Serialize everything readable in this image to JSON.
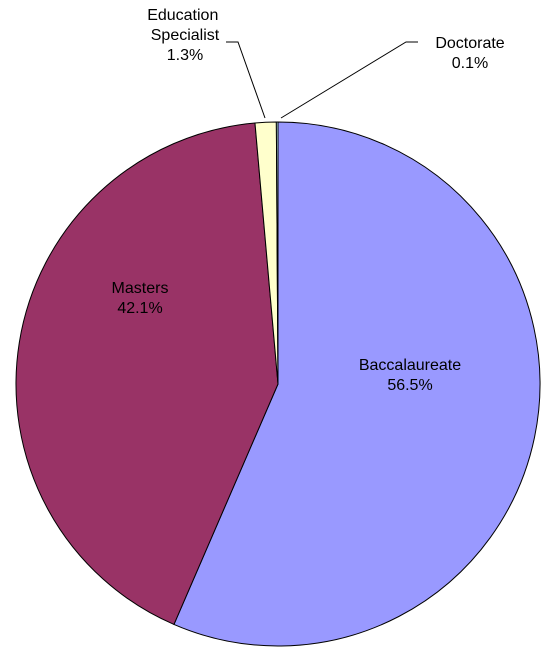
{
  "chart_data": {
    "type": "pie",
    "categories": [
      "Baccalaureate",
      "Masters",
      "Education Specialist",
      "Doctorate"
    ],
    "values": [
      56.5,
      42.1,
      1.3,
      0.1
    ],
    "value_labels": [
      "56.5%",
      "42.1%",
      "1.3%",
      "0.1%"
    ],
    "colors": [
      "#9999ff",
      "#993366",
      "#ffffcc",
      "#ccffff"
    ]
  }
}
